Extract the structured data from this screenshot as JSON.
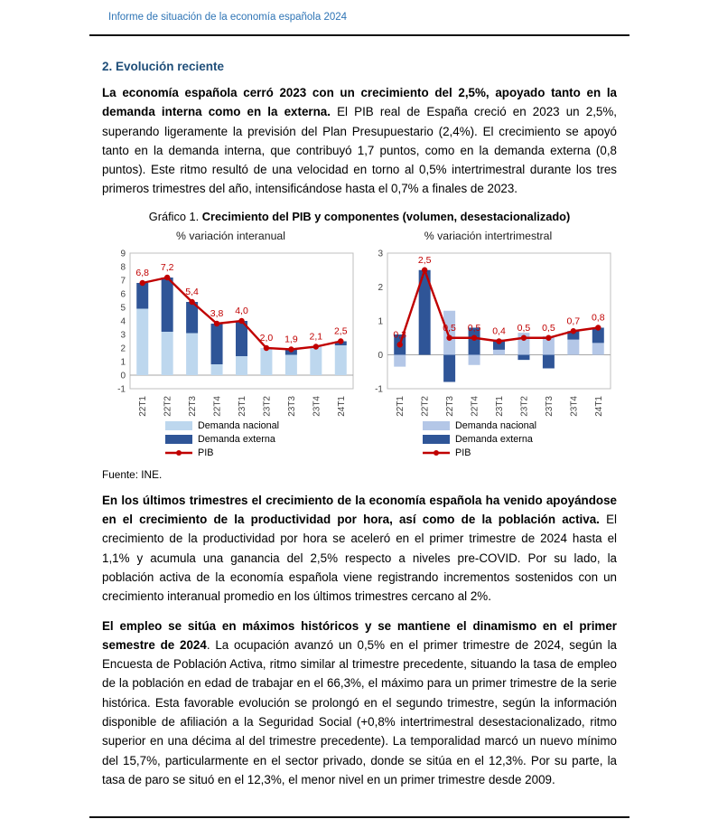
{
  "header": {
    "title": "Informe de situación de la economía española 2024"
  },
  "section": {
    "heading": "2. Evolución reciente"
  },
  "paragraphs": [
    {
      "lead": "La economía española cerró 2023 con un crecimiento del 2,5%, apoyado tanto en la demanda interna como en la externa.",
      "rest": " El PIB real de España creció en 2023 un 2,5%, superando ligeramente la previsión del Plan Presupuestario (2,4%). El crecimiento se apoyó tanto en la demanda interna, que contribuyó 1,7 puntos, como en la demanda externa (0,8 puntos). Este ritmo resultó de una velocidad en torno al 0,5% intertrimestral durante los tres primeros trimestres del año, intensificándose hasta el 0,7% a finales de 2023."
    },
    {
      "lead": "En los últimos trimestres el crecimiento de la economía española ha venido apoyándose en el crecimiento de la productividad por hora, así como de la población activa.",
      "rest": " El crecimiento de la productividad por hora se aceleró en el primer trimestre de 2024 hasta el 1,1% y acumula una ganancia del 2,5% respecto a niveles pre-COVID. Por su lado, la población activa de la economía española viene registrando incrementos sostenidos con un crecimiento interanual promedio en los últimos trimestres cercano al 2%."
    },
    {
      "lead": "El empleo se sitúa en máximos históricos y se mantiene el dinamismo en el primer semestre de 2024",
      "rest": ". La ocupación avanzó un 0,5% en el primer trimestre de 2024, según la Encuesta de Población Activa, ritmo similar al trimestre precedente, situando la tasa de empleo de la población en edad de trabajar en el 66,3%, el máximo para un primer trimestre de la serie histórica. Esta favorable evolución se prolongó en el segundo trimestre, según la información disponible de afiliación a la Seguridad Social (+0,8% intertrimestral desestacionalizado, ritmo superior en una décima al del trimestre precedente). La temporalidad marcó un nuevo mínimo del 15,7%, particularmente en el sector privado, donde se sitúa en el 12,3%. Por su parte, la tasa de paro se situó en el 12,3%, el menor nivel en un primer trimestre desde 2009."
    }
  ],
  "figure": {
    "caption_prefix": "Gráfico 1. ",
    "caption_title": "Crecimiento del PIB y componentes (volumen, desestacionalizado)",
    "source": "Fuente: INE."
  },
  "colors": {
    "header_blue": "#2E74B5",
    "heading_blue": "#1F4E79",
    "light_blue_left": "#BDD7EE",
    "light_blue_right": "#B4C7E7",
    "dark_blue": "#2F5597",
    "pib_red": "#C00000",
    "axis_gray": "#404040",
    "plot_border": "#BFBFBF"
  },
  "chart_data": [
    {
      "type": "bar",
      "variant": "stacked-bars-with-line",
      "title": "% variación interanual",
      "categories": [
        "22T1",
        "22T2",
        "22T3",
        "22T4",
        "23T1",
        "23T2",
        "23T3",
        "23T4",
        "24T1"
      ],
      "series": [
        {
          "name": "Demanda nacional",
          "color": "#BDD7EE",
          "values": [
            4.9,
            3.2,
            3.1,
            0.8,
            1.4,
            2.0,
            1.5,
            2.1,
            2.2
          ]
        },
        {
          "name": "Demanda externa",
          "color": "#2F5597",
          "values": [
            1.9,
            4.0,
            2.3,
            3.0,
            2.6,
            0.0,
            0.4,
            0.0,
            0.3
          ]
        }
      ],
      "line": {
        "name": "PIB",
        "color": "#C00000",
        "values": [
          6.8,
          7.2,
          5.4,
          3.8,
          4.0,
          2.0,
          1.9,
          2.1,
          2.5
        ],
        "labels": [
          "6,8",
          "7,2",
          "5,4",
          "3,8",
          "4,0",
          "2,0",
          "1,9",
          "2,1",
          "2,5"
        ]
      },
      "ylim": [
        -1,
        9
      ],
      "yticks": [
        9,
        8,
        7,
        6,
        5,
        4,
        3,
        2,
        1,
        0,
        -1
      ],
      "grid": false,
      "legend_position": "bottom"
    },
    {
      "type": "bar",
      "variant": "stacked-bars-with-line",
      "title": "% variación intertrimestral",
      "categories": [
        "22T1",
        "22T2",
        "22T3",
        "22T4",
        "23T1",
        "23T2",
        "23T3",
        "23T4",
        "24T1"
      ],
      "series": [
        {
          "name": "Demanda nacional",
          "color": "#B4C7E7",
          "values": [
            -0.35,
            0.0,
            1.3,
            -0.3,
            0.15,
            0.65,
            0.55,
            0.45,
            0.35
          ]
        },
        {
          "name": "Demanda externa",
          "color": "#2F5597",
          "values": [
            0.6,
            2.5,
            -0.8,
            0.8,
            0.3,
            -0.15,
            -0.4,
            0.25,
            0.45
          ]
        }
      ],
      "line": {
        "name": "PIB",
        "color": "#C00000",
        "values": [
          0.3,
          2.5,
          0.5,
          0.5,
          0.4,
          0.5,
          0.5,
          0.7,
          0.8
        ],
        "labels": [
          "0,3",
          "2,5",
          "0,5",
          "0,5",
          "0,4",
          "0,5",
          "0,5",
          "0,7",
          "0,8"
        ]
      },
      "ylim": [
        -1,
        3
      ],
      "yticks": [
        3,
        2,
        1,
        0,
        -1
      ],
      "grid": false,
      "legend_position": "bottom"
    }
  ]
}
